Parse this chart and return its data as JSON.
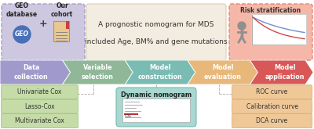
{
  "title_line1": "A prognostic nomogram for MDS",
  "title_line2": "included Age, BM% and gene mutations",
  "top_left_bg": "#cdc8df",
  "top_left_border": "#a89ec8",
  "top_center_bg": "#f2ede0",
  "top_center_border": "#d8d0b8",
  "top_right_bg": "#f5b8a8",
  "top_right_border": "#e08878",
  "arrows": [
    {
      "label": "Data\ncollection",
      "color": "#a09acc"
    },
    {
      "label": "Variable\nselection",
      "color": "#90b898"
    },
    {
      "label": "Model\nconstruction",
      "color": "#7abcb4"
    },
    {
      "label": "Model\nevaluation",
      "color": "#e8b87a"
    },
    {
      "label": "Model\napplication",
      "color": "#d85858"
    }
  ],
  "bottom_left_items": [
    "Univariate Cox",
    "Lasso-Cox",
    "Multivariate Cox"
  ],
  "bottom_left_bg": "#c5dca8",
  "bottom_left_border": "#98c070",
  "bottom_right_items": [
    "ROC curve",
    "Calibration curve",
    "DCA curve"
  ],
  "bottom_right_bg": "#f0c898",
  "bottom_right_border": "#d8a860",
  "bottom_mid_bg": "#a8d8d0",
  "bottom_mid_border": "#78b8b0",
  "geo_circle_color": "#4870b8",
  "doc_color": "#e8c890",
  "doc_border": "#c09050",
  "surv_bg": "#ffffff",
  "surv_line1": "#7090d0",
  "surv_line2": "#d04848",
  "person_color": "#909090",
  "bg_color": "#ffffff",
  "dashed_color": "#aaaaaa"
}
